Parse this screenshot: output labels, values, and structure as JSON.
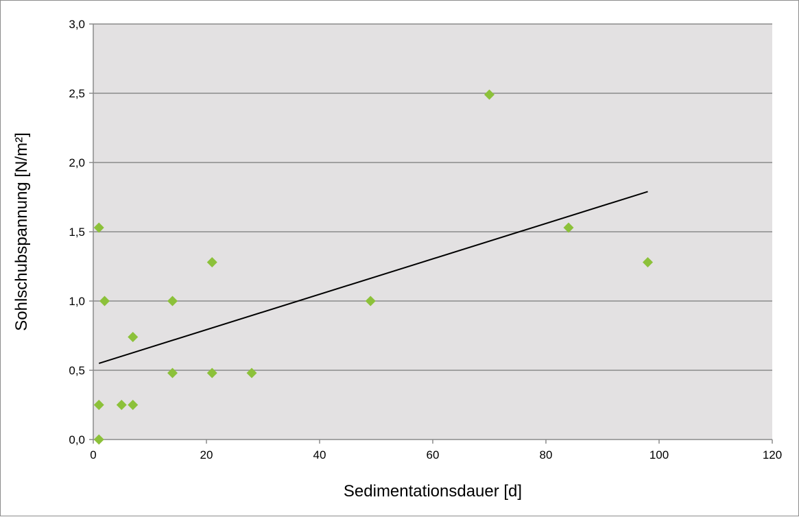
{
  "chart_data": {
    "type": "scatter",
    "title": "",
    "xlabel": "Sedimentationsdauer [d]",
    "ylabel": "Sohlschubspannung [N/m²]",
    "xlim": [
      0,
      120
    ],
    "ylim": [
      0,
      3.0
    ],
    "x_ticks": [
      "0",
      "20",
      "40",
      "60",
      "80",
      "100",
      "120"
    ],
    "y_ticks": [
      "0,0",
      "0,5",
      "1,0",
      "1,5",
      "2,0",
      "2,5",
      "3,0"
    ],
    "grid": "horizontal",
    "legend": "none",
    "colors": {
      "plot_background": "#e3e1e2",
      "marker": "#8cc13a",
      "trendline": "#000000",
      "gridline": "#8a8a8a"
    },
    "series": [
      {
        "marker": "diamond",
        "points": [
          {
            "x": 1,
            "y": 0.0
          },
          {
            "x": 1,
            "y": 0.25
          },
          {
            "x": 1,
            "y": 1.53
          },
          {
            "x": 2,
            "y": 1.0
          },
          {
            "x": 5,
            "y": 0.25
          },
          {
            "x": 7,
            "y": 0.25
          },
          {
            "x": 7,
            "y": 0.74
          },
          {
            "x": 14,
            "y": 0.48
          },
          {
            "x": 14,
            "y": 1.0
          },
          {
            "x": 21,
            "y": 0.48
          },
          {
            "x": 21,
            "y": 1.28
          },
          {
            "x": 28,
            "y": 0.48
          },
          {
            "x": 49,
            "y": 1.0
          },
          {
            "x": 70,
            "y": 2.49
          },
          {
            "x": 84,
            "y": 1.53
          },
          {
            "x": 98,
            "y": 1.28
          }
        ]
      }
    ],
    "trendline": {
      "type": "linear",
      "x": [
        1,
        98
      ],
      "y": [
        0.55,
        1.79
      ]
    }
  }
}
